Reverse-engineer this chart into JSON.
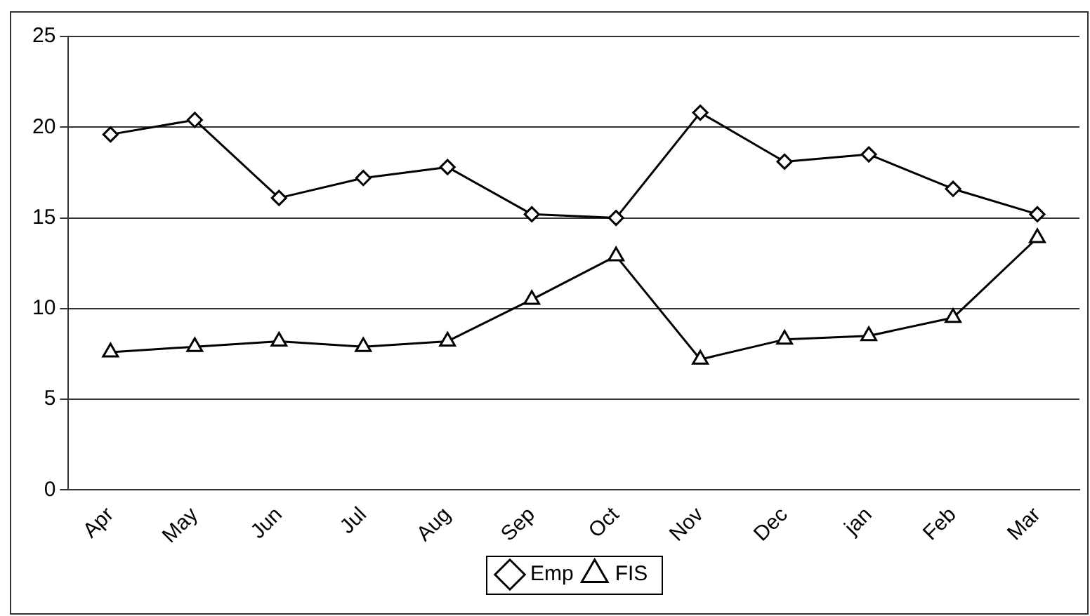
{
  "chart_data": {
    "type": "line",
    "categories": [
      "Apr",
      "May",
      "Jun",
      "Jul",
      "Aug",
      "Sep",
      "Oct",
      "Nov",
      "Dec",
      "jan",
      "Feb",
      "Mar"
    ],
    "series": [
      {
        "name": "Emp",
        "color": "#000000",
        "marker": "diamond",
        "values": [
          19.6,
          20.4,
          16.1,
          17.2,
          17.8,
          15.2,
          15.0,
          20.8,
          18.1,
          18.5,
          16.6,
          15.2
        ]
      },
      {
        "name": "FIS",
        "color": "#000000",
        "marker": "triangle",
        "values": [
          7.6,
          7.9,
          8.2,
          7.9,
          8.2,
          10.5,
          12.9,
          7.2,
          8.3,
          8.5,
          9.5,
          13.9
        ]
      }
    ],
    "ylim": [
      0,
      25
    ],
    "yticks": [
      0,
      5,
      10,
      15,
      20,
      25
    ],
    "grid": "y",
    "legend": "bottom",
    "line_style": "solid"
  }
}
